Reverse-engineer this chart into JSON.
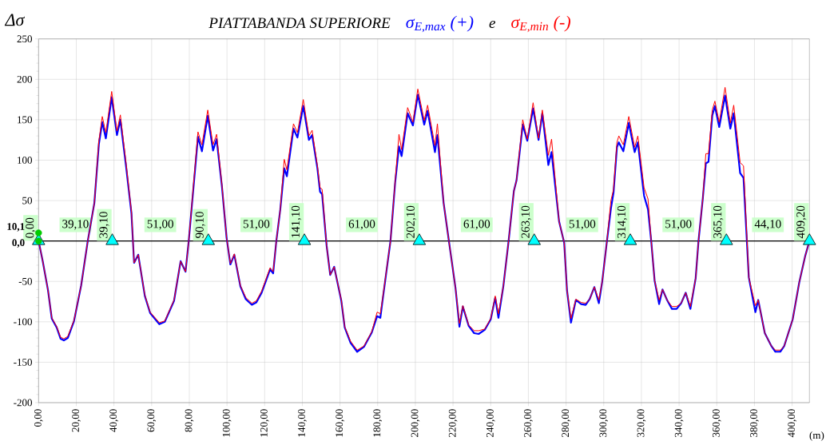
{
  "chart_data": {
    "type": "line",
    "title": "PIATTABANDA SUPERIORE",
    "ylabel": "Δσ",
    "xlabel": "(m)",
    "x": [
      0,
      2.2,
      5,
      7,
      9.6,
      11.7,
      13.4,
      15.5,
      18.8,
      22.6,
      26.1,
      29.6,
      32,
      33.8,
      35.7,
      38.8,
      41.6,
      43.4,
      46.5,
      49.3,
      50.7,
      52.9,
      56.4,
      59.2,
      64.1,
      67,
      71.9,
      75.4,
      78,
      79.7,
      84.6,
      86.7,
      89.8,
      92.6,
      94.5,
      97.3,
      99.8,
      101.8,
      103.9,
      107.1,
      110,
      113.2,
      115.6,
      118.4,
      122.9,
      124.5,
      126.2,
      128.3,
      130.4,
      131.8,
      135.3,
      137.4,
      140.5,
      143.5,
      145.2,
      148,
      149.4,
      150.5,
      152.9,
      154.8,
      156.9,
      160.7,
      162.5,
      165.6,
      169.1,
      172.7,
      176.9,
      179.7,
      181.4,
      182.5,
      186.8,
      189.3,
      191.3,
      192.7,
      195.9,
      198.7,
      201.3,
      204.7,
      206.5,
      210.4,
      211.7,
      215,
      217.8,
      221.3,
      223.4,
      225.2,
      228.3,
      231.2,
      233.6,
      236.8,
      240,
      242.4,
      244.1,
      246.7,
      249.5,
      252.3,
      253.7,
      257,
      259.4,
      262.5,
      265.4,
      267.4,
      270.6,
      272.3,
      276.3,
      279,
      280.5,
      282.6,
      285.2,
      288,
      290.4,
      292.5,
      295,
      297.4,
      299.2,
      301.7,
      303.8,
      305.2,
      307,
      308,
      310.4,
      313.3,
      316.4,
      318.1,
      321.4,
      323.5,
      325.2,
      327,
      329.4,
      331.2,
      333.6,
      336.2,
      338.7,
      341.1,
      343.5,
      346,
      348.8,
      350.3,
      352.6,
      354.2,
      355.6,
      357.6,
      359,
      361.3,
      364.4,
      367.2,
      369,
      372.4,
      374.2,
      377,
      380.5,
      382,
      385.5,
      389,
      391.1,
      393.7,
      395.8,
      400.3,
      403.8,
      407,
      409.2
    ],
    "series": [
      {
        "name": "σ$_{E,max}$ (+)",
        "color": "#0000ff",
        "values": [
          0,
          -25,
          -61,
          -96,
          -107,
          -121,
          -123,
          -120,
          -99,
          -55,
          0,
          47,
          120,
          147,
          127,
          178,
          131,
          150,
          91,
          34,
          -27,
          -17,
          -68,
          -89,
          -103,
          -100,
          -74,
          -25,
          -38,
          0,
          129,
          111,
          155,
          112,
          126,
          68,
          4,
          -29,
          -17,
          -56,
          -72,
          -79,
          -76,
          -64,
          -35,
          -40,
          0,
          39,
          90,
          80,
          139,
          128,
          167,
          125,
          131,
          90,
          61,
          58,
          -6,
          -42,
          -32,
          -74,
          -107,
          -126,
          -137,
          -131,
          -113,
          -93,
          -95,
          -75,
          0,
          73,
          117,
          105,
          158,
          143,
          181,
          144,
          161,
          110,
          131,
          47,
          0,
          -58,
          -106,
          -81,
          -105,
          -114,
          -115,
          -110,
          -97,
          -70,
          -95,
          -56,
          0,
          62,
          75,
          144,
          124,
          164,
          125,
          158,
          94,
          110,
          24,
          -2,
          -61,
          -101,
          -73,
          -78,
          -79,
          -72,
          -57,
          -77,
          -50,
          0,
          40,
          60,
          116,
          122,
          111,
          146,
          110,
          122,
          56,
          39,
          0,
          -49,
          -78,
          -60,
          -73,
          -84,
          -84,
          -77,
          -64,
          -84,
          -46,
          0,
          53,
          96,
          98,
          155,
          167,
          141,
          180,
          139,
          158,
          84,
          78,
          -45,
          -88,
          -73,
          -114,
          -130,
          -137,
          -137,
          -130,
          -97,
          -51,
          -18,
          0
        ]
      },
      {
        "name": "σ$_{E,min}$ (-)",
        "color": "#ff0000",
        "values": [
          0,
          -25,
          -61,
          -95,
          -106,
          -119,
          -121,
          -118,
          -98,
          -55,
          0,
          47,
          124,
          154,
          134,
          185,
          136,
          156,
          95,
          36,
          -27,
          -17,
          -67,
          -88,
          -101,
          -99,
          -73,
          -25,
          -38,
          0,
          135,
          119,
          162,
          119,
          132,
          70,
          4,
          -28,
          -16,
          -55,
          -70,
          -77,
          -74,
          -62,
          -33,
          -38,
          0,
          39,
          101,
          88,
          145,
          134,
          175,
          130,
          137,
          93,
          66,
          64,
          -6,
          -42,
          -32,
          -73,
          -106,
          -124,
          -135,
          -130,
          -112,
          -88,
          -90,
          -73,
          0,
          75,
          132,
          113,
          165,
          147,
          188,
          149,
          168,
          118,
          145,
          47,
          0,
          -58,
          -102,
          -80,
          -104,
          -111,
          -111,
          -109,
          -96,
          -68,
          -90,
          -56,
          0,
          62,
          75,
          150,
          126,
          171,
          127,
          162,
          106,
          126,
          24,
          -2,
          -61,
          -96,
          -72,
          -76,
          -77,
          -72,
          -57,
          -73,
          -50,
          0,
          50,
          64,
          122,
          130,
          119,
          154,
          116,
          130,
          66,
          52,
          0,
          -49,
          -73,
          -60,
          -73,
          -81,
          -81,
          -77,
          -64,
          -81,
          -46,
          0,
          53,
          108,
          108,
          162,
          173,
          147,
          190,
          146,
          168,
          97,
          93,
          -45,
          -80,
          -73,
          -114,
          -130,
          -135,
          -135,
          -130,
          -97,
          -51,
          -18,
          0
        ]
      },
      {
        "type": "scatter",
        "marker": "triangle",
        "color": "#00ffff",
        "x": [
          0,
          39.1,
          90.1,
          141.1,
          202.1,
          263.1,
          314.1,
          365.1,
          409.2
        ],
        "values": [
          0,
          0,
          0,
          0,
          0,
          0,
          0,
          0,
          0
        ]
      },
      {
        "type": "scatter",
        "marker": "circle",
        "color": "#00cc00",
        "x": [
          0,
          0
        ],
        "values": [
          10.1,
          0
        ],
        "value_labels": [
          "10,1",
          "0,0"
        ]
      }
    ],
    "annotations": [
      "e",
      {
        "text": "0,00",
        "x": 0,
        "y": 0
      },
      {
        "text": "39,10",
        "x": 39.1,
        "y": 0
      },
      {
        "text": "90,10",
        "x": 90.1,
        "y": 0
      },
      {
        "text": "141,10",
        "x": 141.1,
        "y": 0
      },
      {
        "text": "202,10",
        "x": 202.1,
        "y": 0
      },
      {
        "text": "263,10",
        "x": 263.1,
        "y": 0
      },
      {
        "text": "314,10",
        "x": 314.1,
        "y": 0
      },
      {
        "text": "365,10",
        "x": 365.1,
        "y": 0
      },
      {
        "text": "409,20",
        "x": 409.2,
        "y": 0
      },
      {
        "text": "39,10",
        "x": 19.55,
        "y": 20
      },
      {
        "text": "51,00",
        "x": 64.6,
        "y": 20
      },
      {
        "text": "51,00",
        "x": 115.6,
        "y": 20
      },
      {
        "text": "61,00",
        "x": 171.6,
        "y": 20
      },
      {
        "text": "61,00",
        "x": 232.6,
        "y": 20
      },
      {
        "text": "51,00",
        "x": 288.6,
        "y": 20
      },
      {
        "text": "51,00",
        "x": 339.6,
        "y": 20
      },
      {
        "text": "44,10",
        "x": 387.15,
        "y": 20
      }
    ],
    "ref_lines": [
      {
        "axis": "y",
        "value": 0,
        "color": "#000000"
      }
    ],
    "xlim": [
      0,
      409.2
    ],
    "ylim": [
      -200,
      250
    ],
    "xticks": [
      {
        "value": 0,
        "label": "0,00"
      },
      {
        "value": 20,
        "label": "20,00"
      },
      {
        "value": 40,
        "label": "40,00"
      },
      {
        "value": 60,
        "label": "60,00"
      },
      {
        "value": 80,
        "label": "80,00"
      },
      {
        "value": 100,
        "label": "100,00"
      },
      {
        "value": 120,
        "label": "120,00"
      },
      {
        "value": 140,
        "label": "140,00"
      },
      {
        "value": 160,
        "label": "160,00"
      },
      {
        "value": 180,
        "label": "180,00"
      },
      {
        "value": 200,
        "label": "200,00"
      },
      {
        "value": 220,
        "label": "220,00"
      },
      {
        "value": 240,
        "label": "240,00"
      },
      {
        "value": 260,
        "label": "260,00"
      },
      {
        "value": 280,
        "label": "280,00"
      },
      {
        "value": 300,
        "label": "300,00"
      },
      {
        "value": 320,
        "label": "320,00"
      },
      {
        "value": 340,
        "label": "340,00"
      },
      {
        "value": 360,
        "label": "360,00"
      },
      {
        "value": 380,
        "label": "380,00"
      },
      {
        "value": 400,
        "label": "400,00"
      }
    ],
    "yticks": [
      -200,
      -150,
      -100,
      -50,
      {
        "value": 0,
        "label": null
      },
      50,
      100,
      150,
      200,
      250
    ],
    "grid": true,
    "marker": "none"
  }
}
